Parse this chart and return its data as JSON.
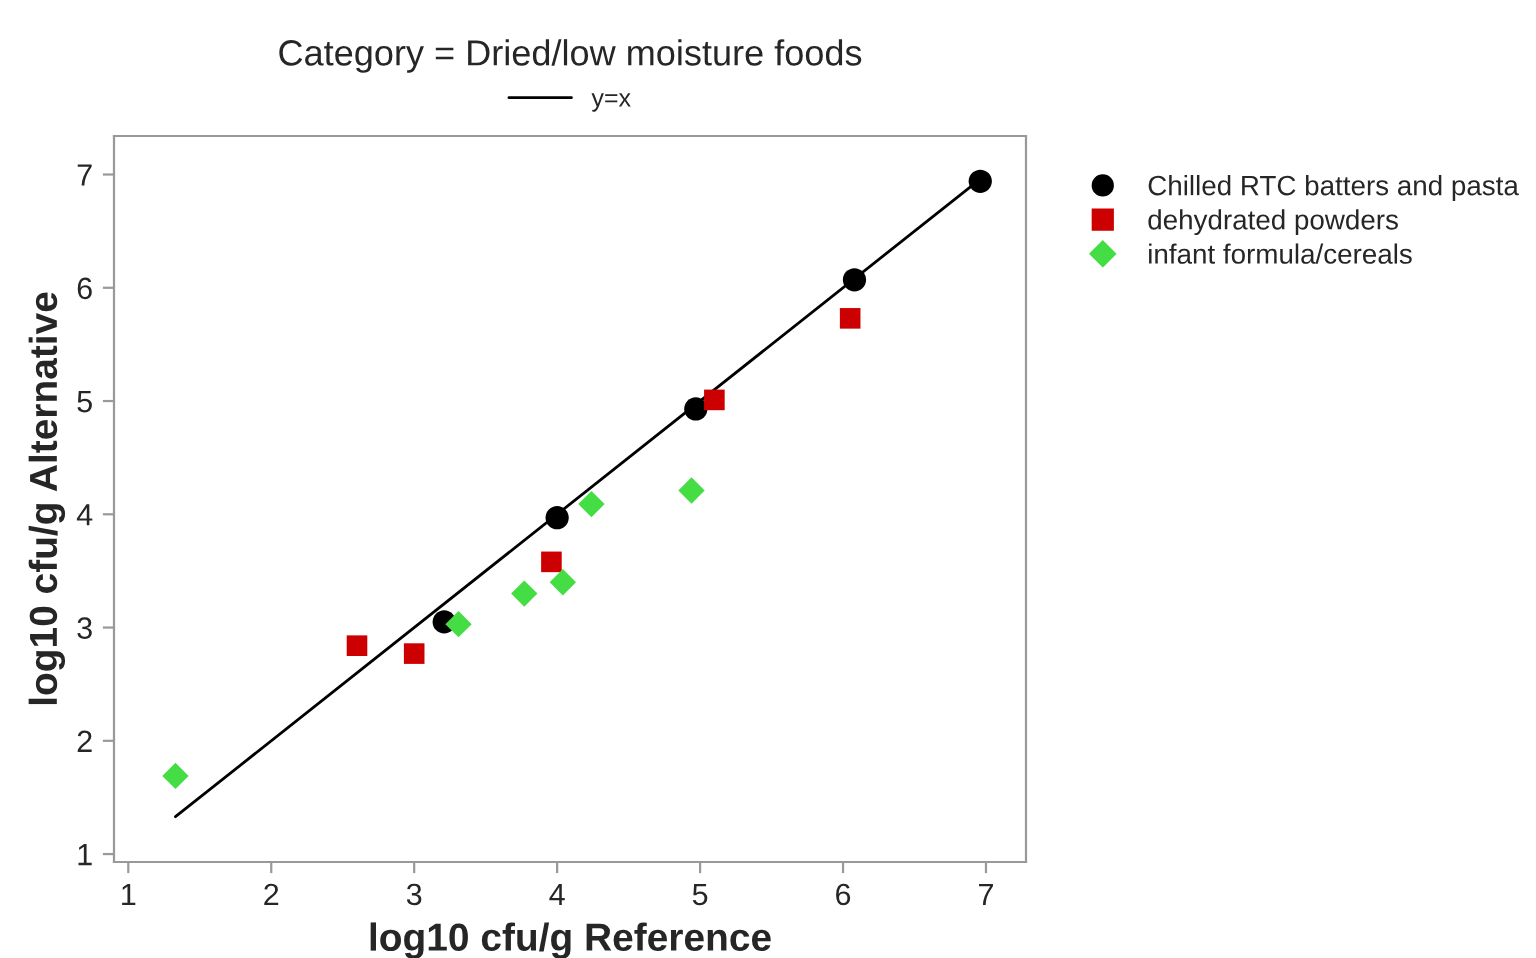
{
  "chart_data": {
    "type": "scatter",
    "title": "Category = Dried/low moisture foods",
    "xlabel": "log10 cfu/g Reference",
    "ylabel": "log10 cfu/g Alternative",
    "xlim": [
      0.9,
      7.28
    ],
    "ylim": [
      0.93,
      7.34
    ],
    "xticks": [
      1,
      2,
      3,
      4,
      5,
      6,
      7
    ],
    "yticks": [
      1,
      2,
      3,
      4,
      5,
      6,
      7
    ],
    "grid": false,
    "legend": "right",
    "series": [
      {
        "name": "y=x",
        "type": "line",
        "color": "#000000",
        "marker": "none",
        "line_style": "solid",
        "x": [
          1.33,
          6.96
        ],
        "values": [
          1.33,
          6.96
        ]
      },
      {
        "name": "Chilled RTC batters and pasta",
        "color": "#000000",
        "marker": "circle",
        "x": [
          3.21,
          4.0,
          4.97,
          6.08,
          6.96
        ],
        "values": [
          3.05,
          3.97,
          4.93,
          6.07,
          6.94
        ]
      },
      {
        "name": "dehydrated powders",
        "color": "#cc0000",
        "marker": "square",
        "x": [
          2.6,
          3.0,
          3.96,
          5.1,
          6.05
        ],
        "values": [
          2.84,
          2.77,
          3.58,
          5.01,
          5.73
        ]
      },
      {
        "name": "infant formula/cereals",
        "color": "#44dd44",
        "marker": "diamond",
        "x": [
          1.33,
          3.31,
          3.77,
          4.04,
          4.24,
          4.94
        ],
        "values": [
          1.69,
          3.03,
          3.3,
          3.4,
          4.09,
          4.21
        ]
      }
    ]
  }
}
